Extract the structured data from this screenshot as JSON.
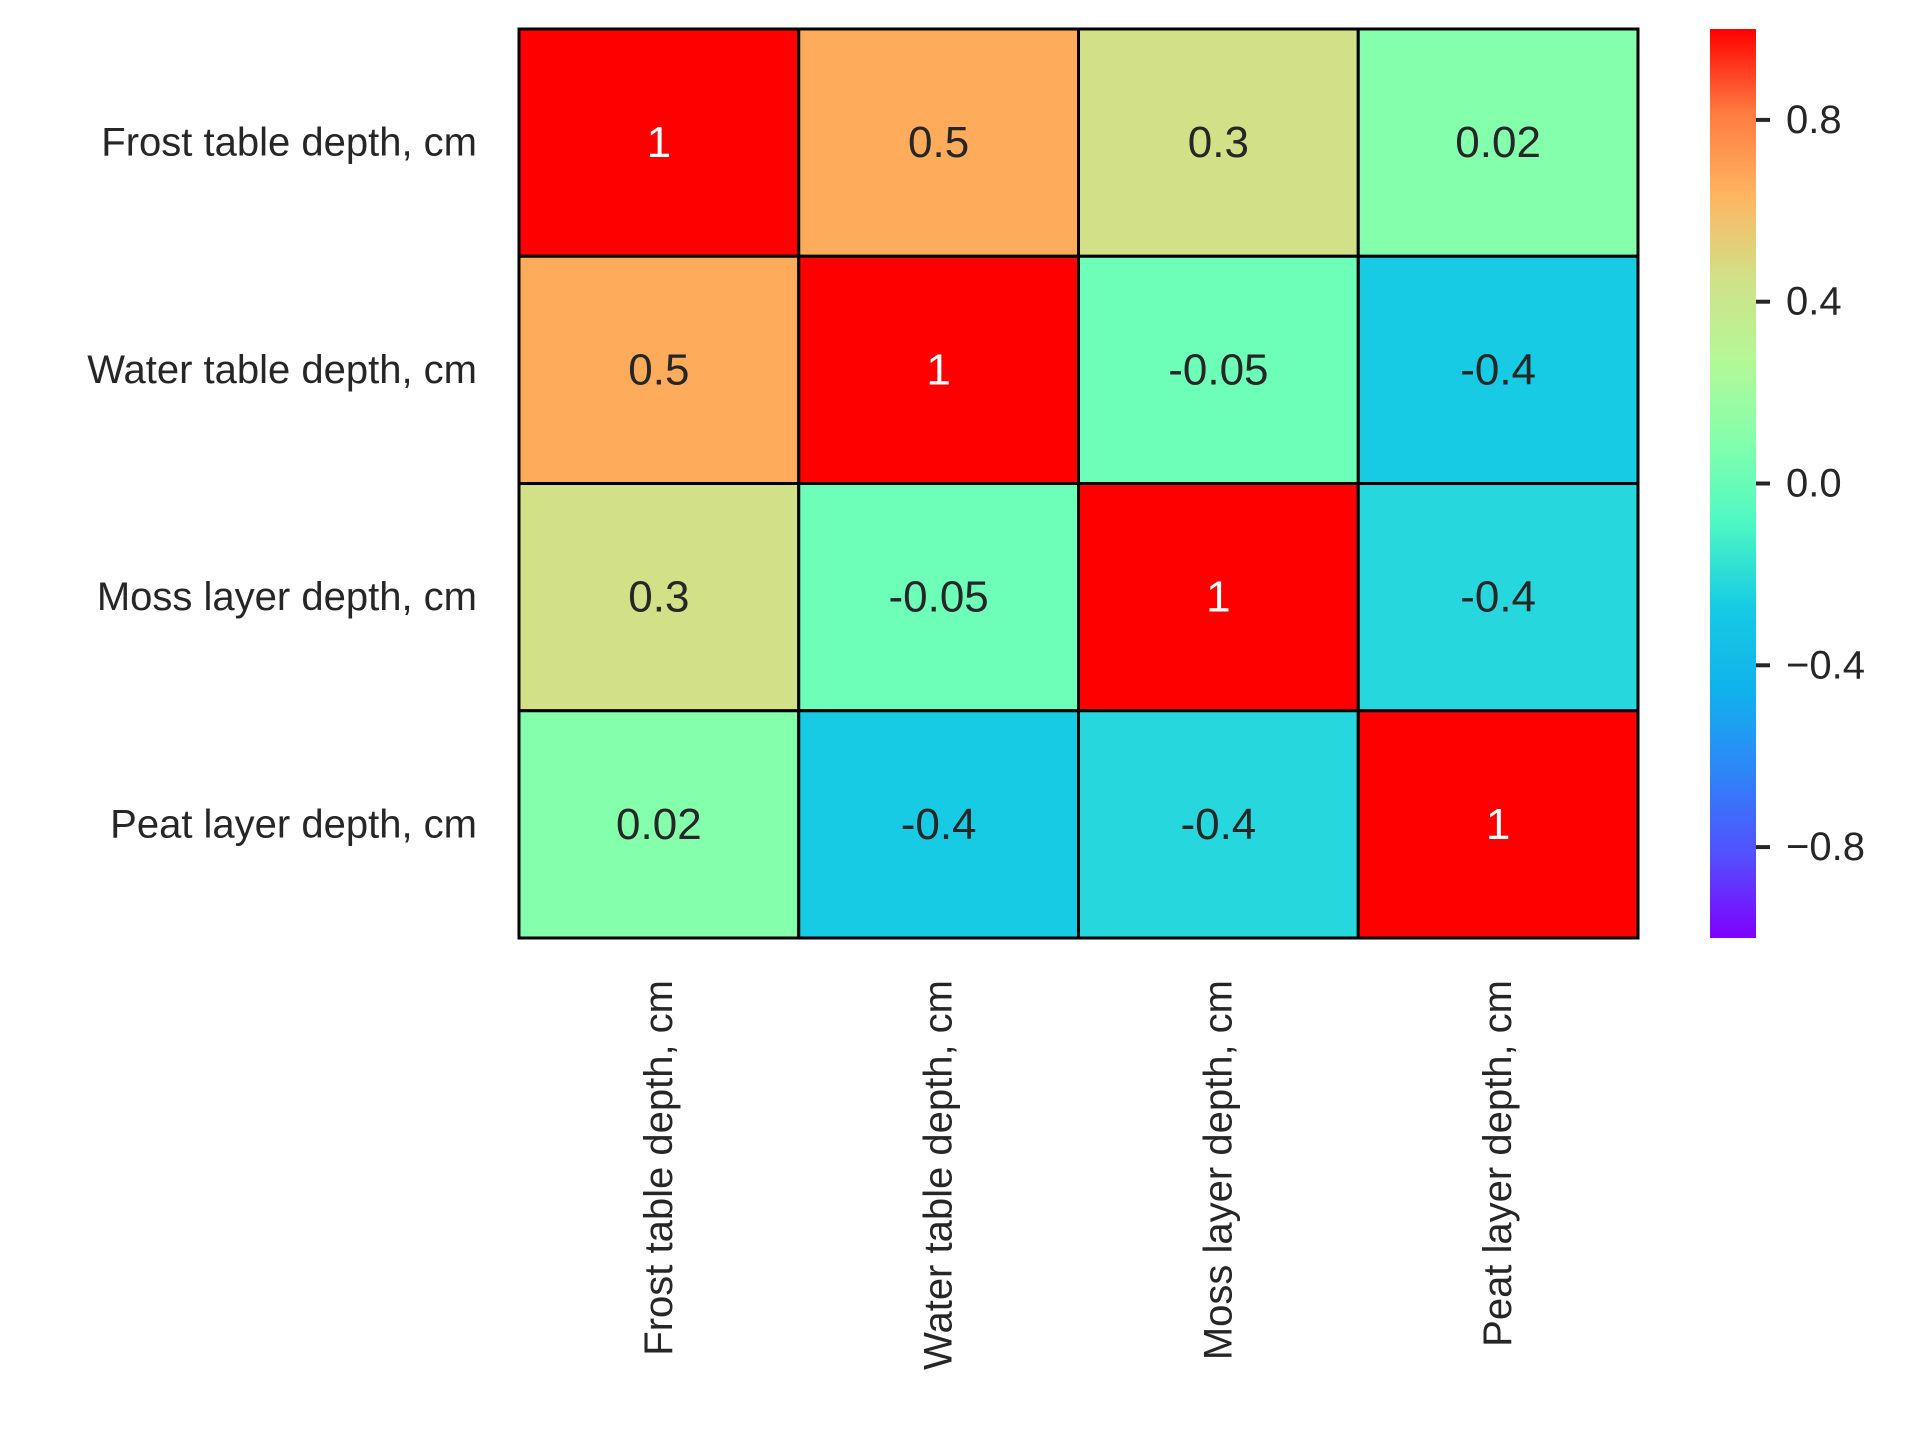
{
  "chart_data": {
    "type": "heatmap",
    "title": "",
    "xlabel": "",
    "ylabel": "",
    "x_categories": [
      "Frost table depth, cm",
      "Water table depth, cm",
      "Moss layer depth, cm",
      "Peat layer depth, cm"
    ],
    "y_categories": [
      "Frost table depth, cm",
      "Water table depth, cm",
      "Moss layer depth, cm",
      "Peat layer depth, cm"
    ],
    "values": [
      [
        1,
        0.5,
        0.3,
        0.02
      ],
      [
        0.5,
        1,
        -0.05,
        -0.4
      ],
      [
        0.3,
        -0.05,
        1,
        -0.4
      ],
      [
        0.02,
        -0.4,
        -0.4,
        1
      ]
    ],
    "value_labels": [
      [
        "1",
        "0.5",
        "0.3",
        "0.02"
      ],
      [
        "0.5",
        "1",
        "-0.05",
        "-0.4"
      ],
      [
        "0.3",
        "-0.05",
        "1",
        "-0.4"
      ],
      [
        "0.02",
        "-0.4",
        "-0.4",
        "1"
      ]
    ],
    "cell_colors": [
      [
        "#ff0000",
        "#ffab5c",
        "#d2e087",
        "#84ffab"
      ],
      [
        "#ffab5c",
        "#ff0000",
        "#6dffb8",
        "#16cbe3"
      ],
      [
        "#d2e087",
        "#6dffb8",
        "#ff0000",
        "#26d8dd"
      ],
      [
        "#84ffab",
        "#16cbe3",
        "#26d8dd",
        "#ff0000"
      ]
    ],
    "colormap": "rainbow",
    "colorbar": {
      "range": [
        -1,
        1
      ],
      "ticks": [
        0.8,
        0.4,
        0.0,
        -0.4,
        -0.8
      ],
      "tick_labels": [
        "0.8",
        "0.4",
        "0.0",
        "−0.4",
        "−0.8"
      ],
      "stops": [
        "#ff0000",
        "#ff7a3f",
        "#ffb461",
        "#d2e087",
        "#b4f897",
        "#84ffab",
        "#4cf7c4",
        "#16cbe3",
        "#10b2eb",
        "#2e85f8",
        "#5350fe",
        "#7f00ff"
      ]
    },
    "grid": false,
    "legend": "colorbar-right"
  }
}
